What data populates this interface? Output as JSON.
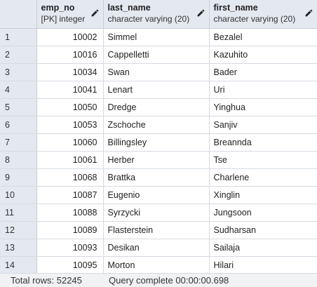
{
  "columns": [
    {
      "name": "emp_no",
      "type": "[PK] integer"
    },
    {
      "name": "last_name",
      "type": "character varying (20)"
    },
    {
      "name": "first_name",
      "type": "character varying (20)"
    }
  ],
  "rows": [
    {
      "n": "1",
      "emp_no": "10002",
      "last_name": "Simmel",
      "first_name": "Bezalel"
    },
    {
      "n": "2",
      "emp_no": "10016",
      "last_name": "Cappelletti",
      "first_name": "Kazuhito"
    },
    {
      "n": "3",
      "emp_no": "10034",
      "last_name": "Swan",
      "first_name": "Bader"
    },
    {
      "n": "4",
      "emp_no": "10041",
      "last_name": "Lenart",
      "first_name": "Uri"
    },
    {
      "n": "5",
      "emp_no": "10050",
      "last_name": "Dredge",
      "first_name": "Yinghua"
    },
    {
      "n": "6",
      "emp_no": "10053",
      "last_name": "Zschoche",
      "first_name": "Sanjiv"
    },
    {
      "n": "7",
      "emp_no": "10060",
      "last_name": "Billingsley",
      "first_name": "Breannda"
    },
    {
      "n": "8",
      "emp_no": "10061",
      "last_name": "Herber",
      "first_name": "Tse"
    },
    {
      "n": "9",
      "emp_no": "10068",
      "last_name": "Brattka",
      "first_name": "Charlene"
    },
    {
      "n": "10",
      "emp_no": "10087",
      "last_name": "Eugenio",
      "first_name": "Xinglin"
    },
    {
      "n": "11",
      "emp_no": "10088",
      "last_name": "Syrzycki",
      "first_name": "Jungsoon"
    },
    {
      "n": "12",
      "emp_no": "10089",
      "last_name": "Flasterstein",
      "first_name": "Sudharsan"
    },
    {
      "n": "13",
      "emp_no": "10093",
      "last_name": "Desikan",
      "first_name": "Sailaja"
    },
    {
      "n": "14",
      "emp_no": "10095",
      "last_name": "Morton",
      "first_name": "Hilari"
    }
  ],
  "status": {
    "total_rows": "Total rows: 52245",
    "query": "Query complete 00:00:00.698"
  },
  "icons": {
    "edit": "pencil-icon"
  }
}
